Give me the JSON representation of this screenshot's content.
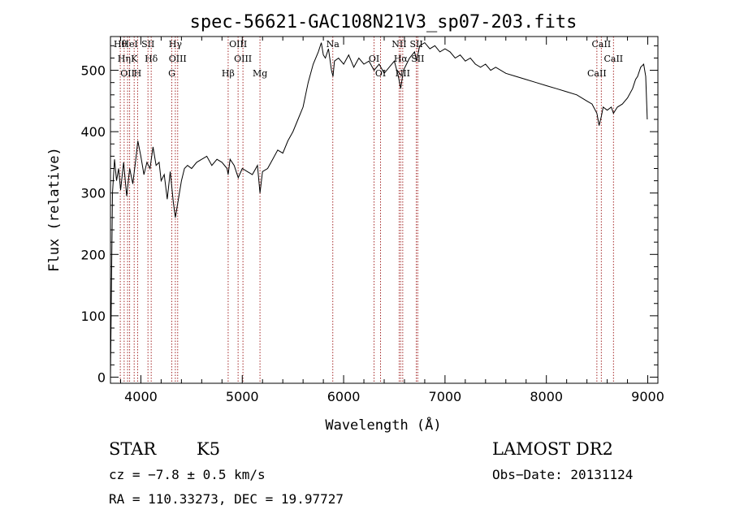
{
  "chart_data": {
    "type": "line",
    "title": "spec-56621-GAC108N21V3_sp07-203.fits",
    "xlabel": "Wavelength (Å)",
    "ylabel": "Flux (relative)",
    "xlim": [
      3700,
      9100
    ],
    "ylim": [
      -10,
      555
    ],
    "x_ticks": [
      4000,
      5000,
      6000,
      7000,
      8000,
      9000
    ],
    "y_ticks": [
      0,
      100,
      200,
      300,
      400,
      500
    ],
    "grid": false,
    "line_color": "#000000",
    "marker_line_color": "#a52a2a",
    "series": [
      {
        "x": [
          3700,
          3720,
          3740,
          3760,
          3780,
          3800,
          3830,
          3860,
          3890,
          3920,
          3950,
          3970,
          4000,
          4030,
          4060,
          4090,
          4120,
          4150,
          4180,
          4200,
          4230,
          4260,
          4290,
          4320,
          4340,
          4360,
          4380,
          4400,
          4430,
          4460,
          4500,
          4550,
          4600,
          4650,
          4700,
          4750,
          4800,
          4850,
          4861,
          4880,
          4920,
          4960,
          5000,
          5050,
          5100,
          5150,
          5175,
          5200,
          5250,
          5300,
          5350,
          5400,
          5450,
          5500,
          5550,
          5600,
          5650,
          5700,
          5750,
          5780,
          5800,
          5820,
          5850,
          5880,
          5895,
          5910,
          5950,
          6000,
          6050,
          6100,
          6150,
          6200,
          6250,
          6300,
          6350,
          6400,
          6450,
          6500,
          6540,
          6563,
          6590,
          6620,
          6650,
          6700,
          6720,
          6750,
          6800,
          6850,
          6900,
          6950,
          7000,
          7050,
          7100,
          7150,
          7200,
          7250,
          7300,
          7350,
          7400,
          7450,
          7500,
          7600,
          7700,
          7800,
          7900,
          8000,
          8100,
          8200,
          8300,
          8400,
          8450,
          8498,
          8520,
          8542,
          8560,
          8600,
          8640,
          8662,
          8700,
          8750,
          8800,
          8850,
          8880,
          8900,
          8930,
          8960,
          8980,
          8995
        ],
        "y": [
          0,
          300,
          355,
          320,
          340,
          305,
          350,
          295,
          340,
          315,
          355,
          385,
          360,
          330,
          350,
          340,
          375,
          345,
          350,
          320,
          330,
          290,
          335,
          285,
          260,
          280,
          300,
          320,
          340,
          345,
          340,
          350,
          355,
          360,
          345,
          355,
          350,
          340,
          330,
          355,
          345,
          325,
          340,
          335,
          330,
          345,
          300,
          335,
          340,
          355,
          370,
          365,
          385,
          400,
          420,
          440,
          480,
          510,
          530,
          545,
          525,
          520,
          535,
          500,
          490,
          515,
          520,
          510,
          525,
          505,
          520,
          510,
          515,
          500,
          510,
          495,
          505,
          515,
          490,
          470,
          500,
          510,
          520,
          530,
          515,
          540,
          545,
          535,
          540,
          530,
          535,
          530,
          520,
          525,
          515,
          520,
          510,
          505,
          510,
          500,
          505,
          495,
          490,
          485,
          480,
          475,
          470,
          465,
          460,
          450,
          445,
          430,
          410,
          425,
          440,
          435,
          440,
          430,
          440,
          445,
          455,
          470,
          485,
          490,
          505,
          510,
          490,
          420
        ]
      }
    ],
    "line_markers": [
      {
        "x": 3797,
        "label": "Hθ"
      },
      {
        "x": 3835,
        "label": "Hη"
      },
      {
        "x": 3869,
        "label": "OII"
      },
      {
        "x": 3889,
        "label": "HeI"
      },
      {
        "x": 3934,
        "label": "K"
      },
      {
        "x": 3968,
        "label": "H"
      },
      {
        "x": 4070,
        "label": "SII"
      },
      {
        "x": 4102,
        "label": "Hδ"
      },
      {
        "x": 4305,
        "label": "G"
      },
      {
        "x": 4340,
        "label": "Hγ"
      },
      {
        "x": 4363,
        "label": "OIII"
      },
      {
        "x": 4861,
        "label": "Hβ"
      },
      {
        "x": 4959,
        "label": "OIII"
      },
      {
        "x": 5007,
        "label": "OIII"
      },
      {
        "x": 5175,
        "label": "Mg"
      },
      {
        "x": 5893,
        "label": "Na"
      },
      {
        "x": 6300,
        "label": "OI"
      },
      {
        "x": 6364,
        "label": "OI"
      },
      {
        "x": 6548,
        "label": "NII"
      },
      {
        "x": 6563,
        "label": "Hα"
      },
      {
        "x": 6583,
        "label": "NII"
      },
      {
        "x": 6717,
        "label": "SII"
      },
      {
        "x": 6731,
        "label": "SII"
      },
      {
        "x": 8498,
        "label": "CaII"
      },
      {
        "x": 8542,
        "label": "CaII"
      },
      {
        "x": 8662,
        "label": "CaII"
      }
    ]
  },
  "info": {
    "object_class": "STAR",
    "subclass": "K5",
    "survey": "LAMOST DR2",
    "redshift": "cz = −7.8 ± 0.5 km/s",
    "obs_date": "Obs−Date: 20131124",
    "coords": "RA = 110.33273, DEC =  19.97727"
  }
}
